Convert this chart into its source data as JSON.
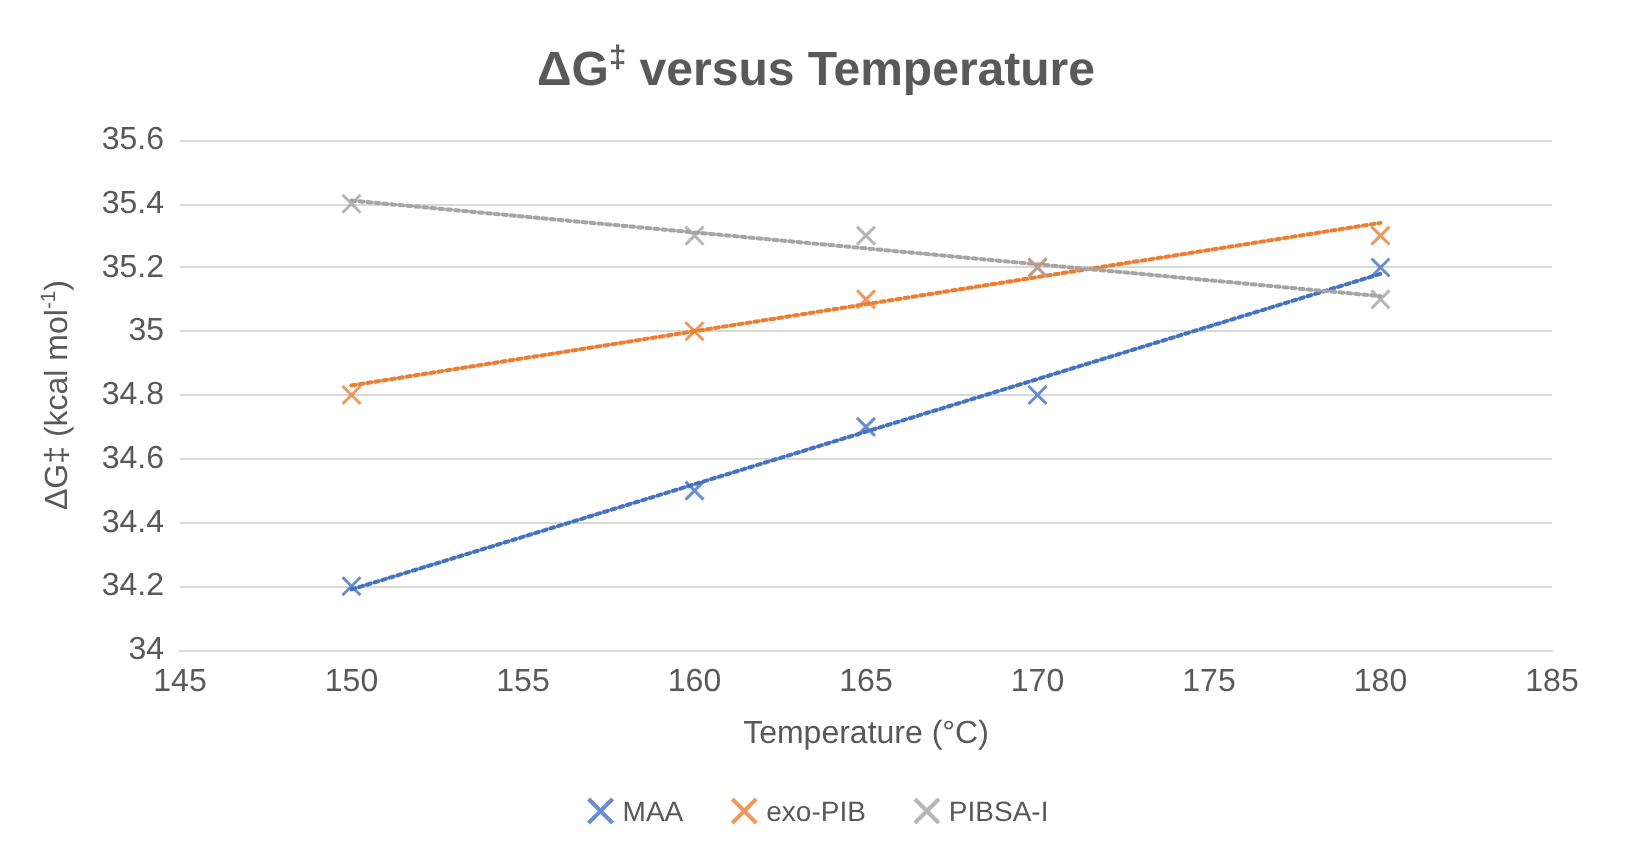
{
  "chart_data": {
    "type": "scatter",
    "title": "ΔG$^{‡}$ versus Temperature",
    "xlabel": "Temperature (°C)",
    "ylabel": "ΔG‡ (kcal mol$^{-1}$)",
    "xlim": [
      145,
      185
    ],
    "xticks": [
      145,
      150,
      155,
      160,
      165,
      170,
      175,
      180,
      185
    ],
    "ylim": [
      34,
      35.6
    ],
    "yticks": [
      34,
      34.2,
      34.4,
      34.6,
      34.8,
      35,
      35.2,
      35.4,
      35.6
    ],
    "grid": "y",
    "legend": "bottom",
    "marker": "cross",
    "series": [
      {
        "name": "MAA",
        "color": "#4472c4",
        "x": [
          150,
          160,
          165,
          170,
          180
        ],
        "values": [
          34.2,
          34.5,
          34.7,
          34.8,
          35.2
        ]
      },
      {
        "name": "exo-PIB",
        "color": "#ed7d31",
        "x": [
          150,
          160,
          165,
          170,
          180
        ],
        "values": [
          34.8,
          35.0,
          35.1,
          35.2,
          35.3
        ]
      },
      {
        "name": "PIBSA-I",
        "color": "#a5a5a5",
        "x": [
          150,
          160,
          165,
          170,
          180
        ],
        "values": [
          35.4,
          35.3,
          35.3,
          35.2,
          35.1
        ]
      },
      {
        "type": "line",
        "line_style": "dotted",
        "marker": "none",
        "color": "#4472c4",
        "x": [
          150,
          180
        ],
        "values": [
          34.19,
          35.18
        ]
      },
      {
        "type": "line",
        "line_style": "dotted",
        "marker": "none",
        "color": "#ed7d31",
        "x": [
          150,
          180
        ],
        "values": [
          34.83,
          35.34
        ]
      },
      {
        "type": "line",
        "line_style": "dotted",
        "marker": "none",
        "color": "#a5a5a5",
        "x": [
          150,
          180
        ],
        "values": [
          35.41,
          35.11
        ]
      }
    ]
  }
}
